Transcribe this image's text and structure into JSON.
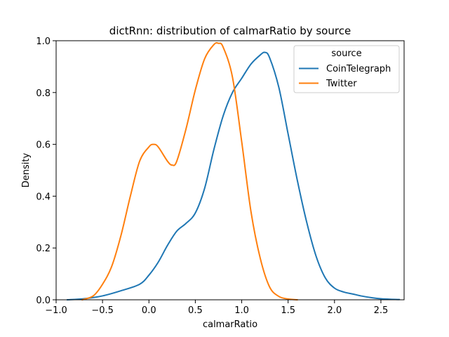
{
  "chart_data": {
    "type": "line",
    "title": "dictRnn: distribution of calmarRatio by source",
    "xlabel": "calmarRatio",
    "ylabel": "Density",
    "xlim": [
      -1.0,
      2.75
    ],
    "ylim": [
      0.0,
      1.0
    ],
    "x_ticks": [
      -1.0,
      -0.5,
      0.0,
      0.5,
      1.0,
      1.5,
      2.0,
      2.5
    ],
    "x_tick_labels": [
      "−1.0",
      "−0.5",
      "0.0",
      "0.5",
      "1.0",
      "1.5",
      "2.0",
      "2.5"
    ],
    "y_ticks": [
      0.0,
      0.2,
      0.4,
      0.6,
      0.8,
      1.0
    ],
    "y_tick_labels": [
      "0.0",
      "0.2",
      "0.4",
      "0.6",
      "0.8",
      "1.0"
    ],
    "grid": false,
    "legend": {
      "title": "source",
      "placement": "top-right"
    },
    "series": [
      {
        "name": "CoinTelegraph",
        "color": "#1f77b4",
        "x": [
          -0.88,
          -0.7,
          -0.5,
          -0.3,
          -0.1,
          0.0,
          0.1,
          0.2,
          0.3,
          0.4,
          0.5,
          0.6,
          0.7,
          0.8,
          0.9,
          1.0,
          1.1,
          1.2,
          1.25,
          1.3,
          1.4,
          1.5,
          1.6,
          1.7,
          1.8,
          1.9,
          2.0,
          2.1,
          2.2,
          2.3,
          2.4,
          2.5,
          2.6,
          2.7
        ],
        "y": [
          0.0,
          0.004,
          0.015,
          0.035,
          0.06,
          0.095,
          0.145,
          0.21,
          0.265,
          0.295,
          0.335,
          0.43,
          0.58,
          0.71,
          0.8,
          0.855,
          0.91,
          0.945,
          0.955,
          0.935,
          0.82,
          0.64,
          0.46,
          0.3,
          0.17,
          0.085,
          0.045,
          0.03,
          0.022,
          0.014,
          0.008,
          0.004,
          0.002,
          0.001
        ]
      },
      {
        "name": "Twitter",
        "color": "#ff7f0e",
        "x": [
          -0.72,
          -0.6,
          -0.5,
          -0.4,
          -0.3,
          -0.2,
          -0.1,
          0.0,
          0.05,
          0.1,
          0.2,
          0.25,
          0.3,
          0.4,
          0.5,
          0.6,
          0.7,
          0.75,
          0.8,
          0.9,
          1.0,
          1.1,
          1.2,
          1.3,
          1.4,
          1.5,
          1.6
        ],
        "y": [
          0.0,
          0.015,
          0.06,
          0.13,
          0.25,
          0.4,
          0.535,
          0.59,
          0.6,
          0.59,
          0.535,
          0.52,
          0.535,
          0.66,
          0.81,
          0.93,
          0.985,
          0.99,
          0.975,
          0.86,
          0.61,
          0.34,
          0.16,
          0.05,
          0.013,
          0.003,
          0.0
        ]
      }
    ]
  }
}
